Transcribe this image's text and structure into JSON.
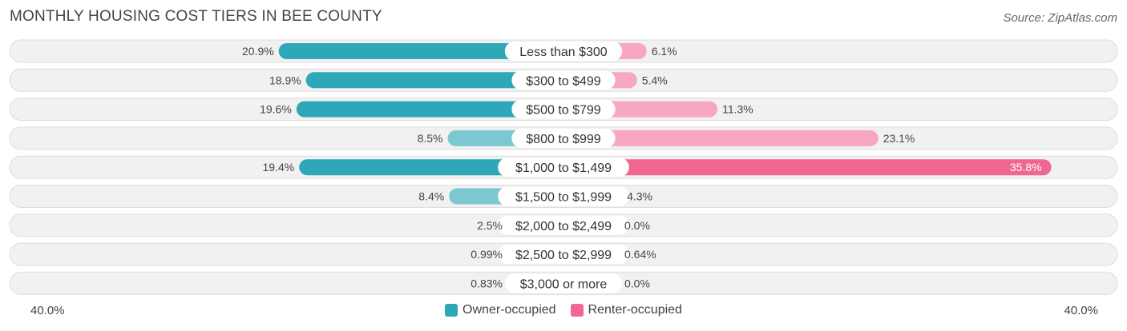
{
  "title": "MONTHLY HOUSING COST TIERS IN BEE COUNTY",
  "source": "Source: ZipAtlas.com",
  "colors": {
    "owner_strong": "#2ea8b8",
    "owner_light": "#7cc8d2",
    "renter_strong": "#f06792",
    "renter_light": "#f7a8c0",
    "row_bg": "#f1f1f1",
    "row_border": "#dddddd"
  },
  "legend": {
    "owner_label": "Owner-occupied",
    "renter_label": "Renter-occupied"
  },
  "axis": {
    "left_label": "40.0%",
    "right_label": "40.0%"
  },
  "chart_data": {
    "type": "bar",
    "orientation": "horizontal-diverging",
    "xlim": [
      -40,
      40
    ],
    "categories": [
      "Less than $300",
      "$300 to $499",
      "$500 to $799",
      "$800 to $999",
      "$1,000 to $1,499",
      "$1,500 to $1,999",
      "$2,000 to $2,499",
      "$2,500 to $2,999",
      "$3,000 or more"
    ],
    "series": [
      {
        "name": "Owner-occupied",
        "values": [
          20.9,
          18.9,
          19.6,
          8.5,
          19.4,
          8.4,
          2.5,
          0.99,
          0.83
        ],
        "labels": [
          "20.9%",
          "18.9%",
          "19.6%",
          "8.5%",
          "19.4%",
          "8.4%",
          "2.5%",
          "0.99%",
          "0.83%"
        ]
      },
      {
        "name": "Renter-occupied",
        "values": [
          6.1,
          5.4,
          11.3,
          23.1,
          35.8,
          4.3,
          0.0,
          0.64,
          0.0
        ],
        "labels": [
          "6.1%",
          "5.4%",
          "11.3%",
          "23.1%",
          "35.8%",
          "4.3%",
          "0.0%",
          "0.64%",
          "0.0%"
        ]
      }
    ]
  }
}
